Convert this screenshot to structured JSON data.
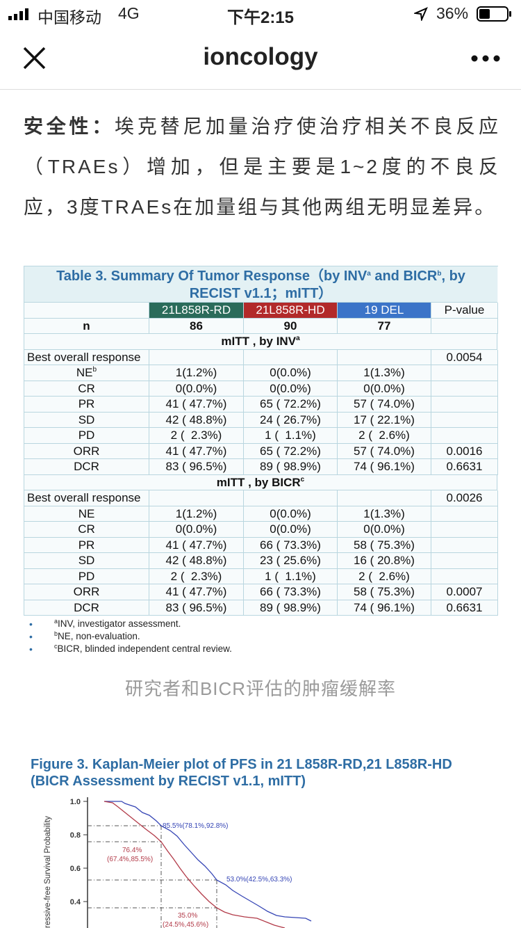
{
  "status_bar": {
    "carrier": "中国移动",
    "network": "4G",
    "time": "下午2:15",
    "battery": "36%"
  },
  "nav": {
    "title": "ioncology"
  },
  "article": {
    "lead": "安全性：",
    "text": "埃克替尼加量治疗使治疗相关不良反应（TRAEs）增加，但是主要是1~2度的不良反应，3度TRAEs在加量组与其他两组无明显差异。"
  },
  "table": {
    "title": [
      [
        {
          "text": "Table 3. Summary Of Tumor Response（by INV"
        },
        {
          "sup": "a"
        },
        {
          "text": " and BICR"
        },
        {
          "sup": "b"
        },
        {
          "text": ", by"
        }
      ],
      [
        {
          "text": "RECIST v1.1；mITT）"
        }
      ]
    ],
    "columns": [
      "21L858R-RD",
      "21L858R-HD",
      "19 DEL",
      "P-value"
    ],
    "rows": [
      {
        "label": "n",
        "cells": [
          "86",
          "90",
          "77"
        ],
        "bold": true
      },
      {
        "section": "mITT , by INV",
        "sup": "a"
      },
      {
        "label": "Best overall response",
        "p": "0.0054",
        "align": "left"
      },
      {
        "label": "NE",
        "sup": "b",
        "cells": [
          "1(1.2%)",
          "0(0.0%)",
          "1(1.3%)"
        ]
      },
      {
        "label": "CR",
        "cells": [
          "0(0.0%)",
          "0(0.0%)",
          "0(0.0%)"
        ]
      },
      {
        "label": "PR",
        "cells": [
          "41 ( 47.7%)",
          "65 ( 72.2%)",
          "57 ( 74.0%)"
        ]
      },
      {
        "label": "SD",
        "cells": [
          "42 ( 48.8%)",
          "24 ( 26.7%)",
          "17 ( 22.1%)"
        ]
      },
      {
        "label": "PD",
        "cells": [
          "2 (  2.3%)",
          "1 (  1.1%)",
          "2 (  2.6%)"
        ]
      },
      {
        "label": "ORR",
        "cells": [
          "41 ( 47.7%)",
          "65 ( 72.2%)",
          "57 ( 74.0%)"
        ],
        "p": "0.0016"
      },
      {
        "label": "DCR",
        "cells": [
          "83 ( 96.5%)",
          "89 ( 98.9%)",
          "74 ( 96.1%)"
        ],
        "p": "0.6631"
      },
      {
        "section": "mITT , by BICR",
        "sup": "c"
      },
      {
        "label": "Best overall response",
        "p": "0.0026",
        "align": "left"
      },
      {
        "label": "NE",
        "cells": [
          "1(1.2%)",
          "0(0.0%)",
          "1(1.3%)"
        ]
      },
      {
        "label": "CR",
        "cells": [
          "0(0.0%)",
          "0(0.0%)",
          "0(0.0%)"
        ]
      },
      {
        "label": "PR",
        "cells": [
          "41 ( 47.7%)",
          "66 ( 73.3%)",
          "58 ( 75.3%)"
        ]
      },
      {
        "label": "SD",
        "cells": [
          "42 ( 48.8%)",
          "23 ( 25.6%)",
          "16 ( 20.8%)"
        ]
      },
      {
        "label": "PD",
        "cells": [
          "2 (  2.3%)",
          "1 (  1.1%)",
          "2 (  2.6%)"
        ]
      },
      {
        "label": "ORR",
        "cells": [
          "41 ( 47.7%)",
          "66 ( 73.3%)",
          "58 ( 75.3%)"
        ],
        "p": "0.0007"
      },
      {
        "label": "DCR",
        "cells": [
          "83 ( 96.5%)",
          "89 ( 98.9%)",
          "74 ( 96.1%)"
        ],
        "p": "0.6631"
      }
    ],
    "footnotes": [
      {
        "sup": "a",
        "text": "INV, investigator assessment."
      },
      {
        "sup": "b",
        "text": "NE, non-evaluation."
      },
      {
        "sup": "c",
        "text": "BICR, blinded independent central review."
      }
    ]
  },
  "caption": "研究者和BICR评估的肿瘤缓解率",
  "figure": {
    "title": [
      "Figure 3. Kaplan-Meier plot of PFS in 21 L858R-RD,21 L858R-HD",
      "(BICR Assessment by RECIST v1.1, mITT)"
    ],
    "y_label": "ressive-free Survival Probability",
    "yticks": [
      {
        "value": 1,
        "label": "1.0"
      },
      0.8,
      0.6,
      0.4
    ],
    "annotations": [
      {
        "text": "85.5%(78.1%,92.8%)",
        "series": "RD"
      },
      {
        "text": "76.4%",
        "series": "HD"
      },
      {
        "text": "(67.4%,85.5%)",
        "series": "HD"
      },
      {
        "text": "53.0%(42.5%,63.3%)",
        "series": "RD"
      },
      {
        "text": "35.0%",
        "series": "HD"
      },
      {
        "text": "(24.5%,45.6%)",
        "series": "HD"
      }
    ]
  }
}
